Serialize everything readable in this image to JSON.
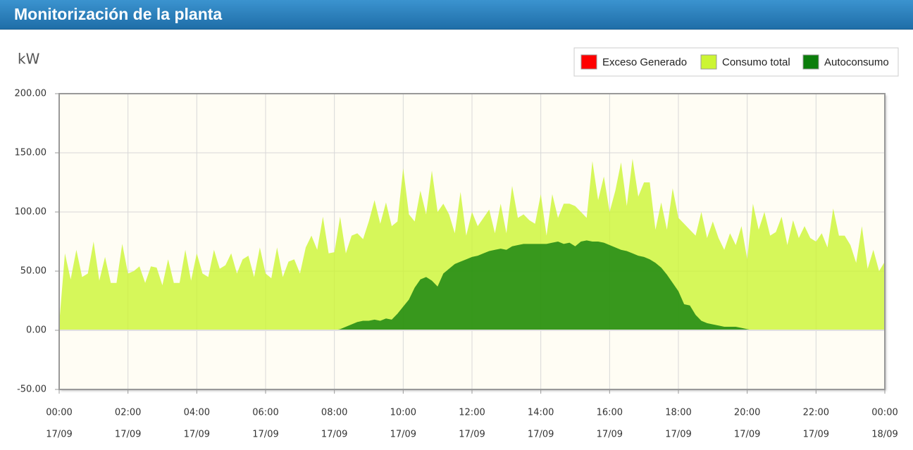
{
  "chart_data": {
    "type": "area",
    "title": "Monitorización de la planta",
    "ylabel": "kW",
    "legend": "upper right",
    "grid": true,
    "ylim": [
      -50,
      200
    ],
    "yticks": [
      {
        "value": -50,
        "label": "-50.00"
      },
      {
        "value": 0,
        "label": "0.00"
      },
      {
        "value": 50,
        "label": "50.00"
      },
      {
        "value": 100,
        "label": "100.00"
      },
      {
        "value": 150,
        "label": "150.00"
      },
      {
        "value": 200,
        "label": "200.00"
      }
    ],
    "xlim": [
      0,
      1440
    ],
    "xticks": [
      {
        "value": 0,
        "label": "00:00"
      },
      {
        "value": 120,
        "label": "02:00"
      },
      {
        "value": 240,
        "label": "04:00"
      },
      {
        "value": 360,
        "label": "06:00"
      },
      {
        "value": 480,
        "label": "08:00"
      },
      {
        "value": 600,
        "label": "10:00"
      },
      {
        "value": 720,
        "label": "12:00"
      },
      {
        "value": 840,
        "label": "14:00"
      },
      {
        "value": 960,
        "label": "16:00"
      },
      {
        "value": 1080,
        "label": "18:00"
      },
      {
        "value": 1200,
        "label": "20:00"
      },
      {
        "value": 1320,
        "label": "22:00"
      },
      {
        "value": 1440,
        "label": "00:00"
      }
    ],
    "xtick_dates": [
      "17/09",
      "17/09",
      "17/09",
      "17/09",
      "17/09",
      "17/09",
      "17/09",
      "17/09",
      "17/09",
      "17/09",
      "17/09",
      "17/09",
      "18/09"
    ],
    "x": [
      0,
      10,
      20,
      30,
      40,
      50,
      60,
      70,
      80,
      90,
      100,
      110,
      120,
      130,
      140,
      150,
      160,
      170,
      180,
      190,
      200,
      210,
      220,
      230,
      240,
      250,
      260,
      270,
      280,
      290,
      300,
      310,
      320,
      330,
      340,
      350,
      360,
      370,
      380,
      390,
      400,
      410,
      420,
      430,
      440,
      450,
      460,
      470,
      480,
      490,
      500,
      510,
      520,
      530,
      540,
      550,
      560,
      570,
      580,
      590,
      600,
      610,
      620,
      630,
      640,
      650,
      660,
      670,
      680,
      690,
      700,
      710,
      720,
      730,
      740,
      750,
      760,
      770,
      780,
      790,
      800,
      810,
      820,
      830,
      840,
      850,
      860,
      870,
      880,
      890,
      900,
      910,
      920,
      930,
      940,
      950,
      960,
      970,
      980,
      990,
      1000,
      1010,
      1020,
      1030,
      1040,
      1050,
      1060,
      1070,
      1080,
      1090,
      1100,
      1110,
      1120,
      1130,
      1140,
      1150,
      1160,
      1170,
      1180,
      1190,
      1200,
      1210,
      1220,
      1230,
      1240,
      1250,
      1260,
      1270,
      1280,
      1290,
      1300,
      1310,
      1320,
      1330,
      1340,
      1350,
      1360,
      1370,
      1380,
      1390,
      1400,
      1410,
      1420,
      1430,
      1440
    ],
    "series": [
      {
        "name": "Exceso Generado",
        "color": "#ff0000",
        "opacity": 0.85,
        "values": [
          null,
          null,
          null,
          null,
          null,
          null,
          null,
          null,
          null,
          null,
          null,
          null,
          null,
          null,
          null,
          null,
          null,
          null,
          null,
          null,
          null,
          null,
          null,
          null,
          null,
          null,
          null,
          null,
          null,
          null,
          null,
          null,
          null,
          null,
          null,
          null,
          null,
          null,
          null,
          null,
          null,
          null,
          null,
          null,
          null,
          null,
          null,
          null,
          null,
          null,
          null,
          null,
          null,
          null,
          null,
          null,
          null,
          null,
          null,
          null,
          null,
          null,
          null,
          null,
          null,
          null,
          null,
          null,
          null,
          null,
          null,
          null,
          null,
          null,
          null,
          null,
          null,
          null,
          null,
          null,
          null,
          null,
          null,
          null,
          null,
          null,
          null,
          null,
          null,
          null,
          null,
          null,
          null,
          null,
          null,
          null,
          null,
          null,
          null,
          null,
          null,
          null,
          null,
          null,
          null,
          null,
          null,
          null,
          null,
          null,
          null,
          null,
          null,
          null,
          null,
          null,
          null,
          null,
          null,
          null,
          null,
          null,
          null,
          null,
          null,
          null,
          null,
          null,
          null,
          null,
          null,
          null,
          null,
          null,
          null,
          null,
          null,
          null,
          null,
          null,
          null,
          null,
          null,
          null,
          null
        ]
      },
      {
        "name": "Consumo total",
        "color": "#ccf533",
        "opacity": 0.8,
        "values": [
          5,
          65,
          43,
          68,
          45,
          48,
          75,
          42,
          62,
          40,
          40,
          73,
          48,
          50,
          54,
          40,
          54,
          53,
          38,
          60,
          40,
          40,
          68,
          42,
          65,
          48,
          45,
          68,
          52,
          55,
          65,
          48,
          60,
          63,
          45,
          70,
          48,
          44,
          70,
          45,
          58,
          60,
          48,
          70,
          80,
          68,
          96,
          65,
          66,
          96,
          65,
          80,
          82,
          77,
          92,
          110,
          90,
          108,
          88,
          92,
          137,
          98,
          92,
          118,
          98,
          135,
          100,
          107,
          98,
          82,
          117,
          80,
          100,
          88,
          95,
          102,
          82,
          107,
          82,
          122,
          95,
          98,
          93,
          90,
          115,
          80,
          115,
          95,
          107,
          107,
          105,
          100,
          95,
          143,
          110,
          130,
          100,
          118,
          142,
          105,
          145,
          113,
          125,
          125,
          85,
          108,
          85,
          120,
          95,
          90,
          85,
          80,
          100,
          78,
          92,
          78,
          68,
          82,
          72,
          88,
          60,
          107,
          85,
          100,
          80,
          83,
          96,
          72,
          93,
          78,
          88,
          78,
          75,
          82,
          70,
          103,
          80,
          80,
          72,
          57,
          88,
          52,
          68,
          50,
          58
        ]
      },
      {
        "name": "Autoconsumo",
        "color": "#0b7d0b",
        "opacity": 0.78,
        "values": [
          0,
          0,
          0,
          0,
          0,
          0,
          0,
          0,
          0,
          0,
          0,
          0,
          0,
          0,
          0,
          0,
          0,
          0,
          0,
          0,
          0,
          0,
          0,
          0,
          0,
          0,
          0,
          0,
          0,
          0,
          0,
          0,
          0,
          0,
          0,
          0,
          0,
          0,
          0,
          0,
          0,
          0,
          0,
          0,
          0,
          0,
          0,
          0,
          0,
          1,
          3,
          5,
          7,
          8,
          8,
          9,
          8,
          10,
          9,
          14,
          20,
          26,
          36,
          43,
          45,
          42,
          37,
          48,
          52,
          56,
          58,
          60,
          62,
          63,
          65,
          67,
          68,
          69,
          68,
          71,
          72,
          73,
          73,
          73,
          73,
          73,
          74,
          75,
          73,
          74,
          71,
          75,
          76,
          75,
          75,
          74,
          72,
          70,
          68,
          67,
          65,
          63,
          62,
          60,
          57,
          53,
          47,
          40,
          33,
          22,
          21,
          13,
          8,
          6,
          5,
          4,
          3,
          3,
          3,
          2,
          1,
          0,
          0,
          0,
          0,
          0,
          0,
          0,
          0,
          0,
          0,
          0,
          0,
          0,
          0,
          0,
          0,
          0,
          0,
          0,
          0,
          0,
          0,
          0,
          0
        ]
      }
    ]
  }
}
